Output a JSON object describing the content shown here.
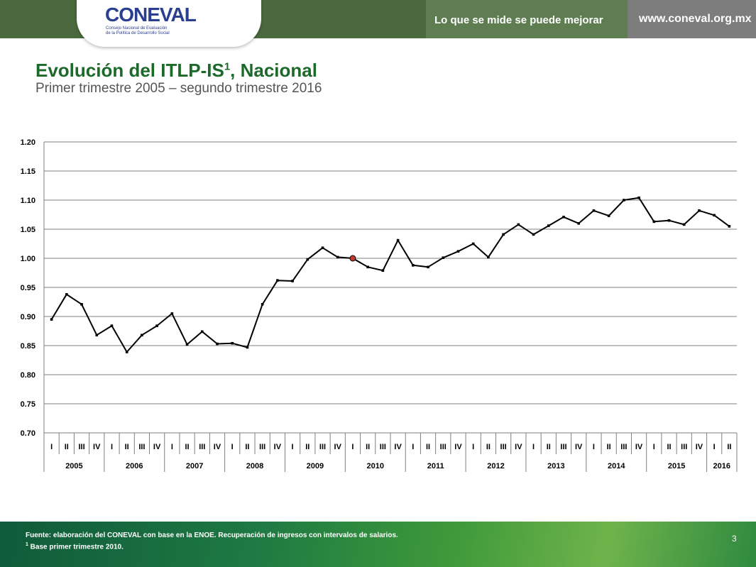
{
  "header": {
    "logo_text": "CONEVAL",
    "logo_subtitle_1": "Consejo Nacional de Evaluación",
    "logo_subtitle_2": "de la Política de Desarrollo Social",
    "slogan": "Lo que se mide se puede mejorar",
    "website": "www.coneval.org.mx"
  },
  "title": {
    "main": "Evolución del ITLP-IS",
    "sup": "1",
    "suffix": ", Nacional"
  },
  "subtitle": "Primer trimestre 2005 – segundo trimestre 2016",
  "footer": {
    "source": "Fuente: elaboración del CONEVAL con base en la ENOE. Recuperación de ingresos con intervalos de salarios.",
    "note_marker": "1",
    "note": " Base primer trimestre 2010.",
    "page_number": "3"
  },
  "colors": {
    "line": "#000000",
    "highlight": "#c0392b",
    "grid": "#7f7f7f"
  },
  "chart_data": {
    "type": "line",
    "title": "",
    "xlabel": "",
    "ylabel": "",
    "ylim": [
      0.7,
      1.2
    ],
    "yticks": [
      "0.70",
      "0.75",
      "0.80",
      "0.85",
      "0.90",
      "0.95",
      "1.00",
      "1.05",
      "1.10",
      "1.15",
      "1.20"
    ],
    "grid": true,
    "years": [
      {
        "year": "2005",
        "quarters": [
          "I",
          "II",
          "III",
          "IV"
        ]
      },
      {
        "year": "2006",
        "quarters": [
          "I",
          "II",
          "III",
          "IV"
        ]
      },
      {
        "year": "2007",
        "quarters": [
          "I",
          "II",
          "III",
          "IV"
        ]
      },
      {
        "year": "2008",
        "quarters": [
          "I",
          "II",
          "III",
          "IV"
        ]
      },
      {
        "year": "2009",
        "quarters": [
          "I",
          "II",
          "III",
          "IV"
        ]
      },
      {
        "year": "2010",
        "quarters": [
          "I",
          "II",
          "III",
          "IV"
        ]
      },
      {
        "year": "2011",
        "quarters": [
          "I",
          "II",
          "III",
          "IV"
        ]
      },
      {
        "year": "2012",
        "quarters": [
          "I",
          "II",
          "III",
          "IV"
        ]
      },
      {
        "year": "2013",
        "quarters": [
          "I",
          "II",
          "III",
          "IV"
        ]
      },
      {
        "year": "2014",
        "quarters": [
          "I",
          "II",
          "III",
          "IV"
        ]
      },
      {
        "year": "2015",
        "quarters": [
          "I",
          "II",
          "III",
          "IV"
        ]
      },
      {
        "year": "2016",
        "quarters": [
          "I",
          "II"
        ]
      }
    ],
    "series": [
      {
        "values": [
          0.895,
          0.938,
          0.921,
          0.868,
          0.884,
          0.839,
          0.868,
          0.884,
          0.905,
          0.852,
          0.874,
          0.853,
          0.854,
          0.847,
          0.921,
          0.962,
          0.961,
          0.998,
          1.018,
          1.002,
          1.0,
          0.985,
          0.979,
          1.031,
          0.988,
          0.985,
          1.001,
          1.012,
          1.025,
          1.002,
          1.041,
          1.058,
          1.041,
          1.056,
          1.071,
          1.06,
          1.082,
          1.073,
          1.1,
          1.104,
          1.063,
          1.065,
          1.058,
          1.082,
          1.074,
          1.055
        ]
      }
    ],
    "highlight_index": 20
  }
}
